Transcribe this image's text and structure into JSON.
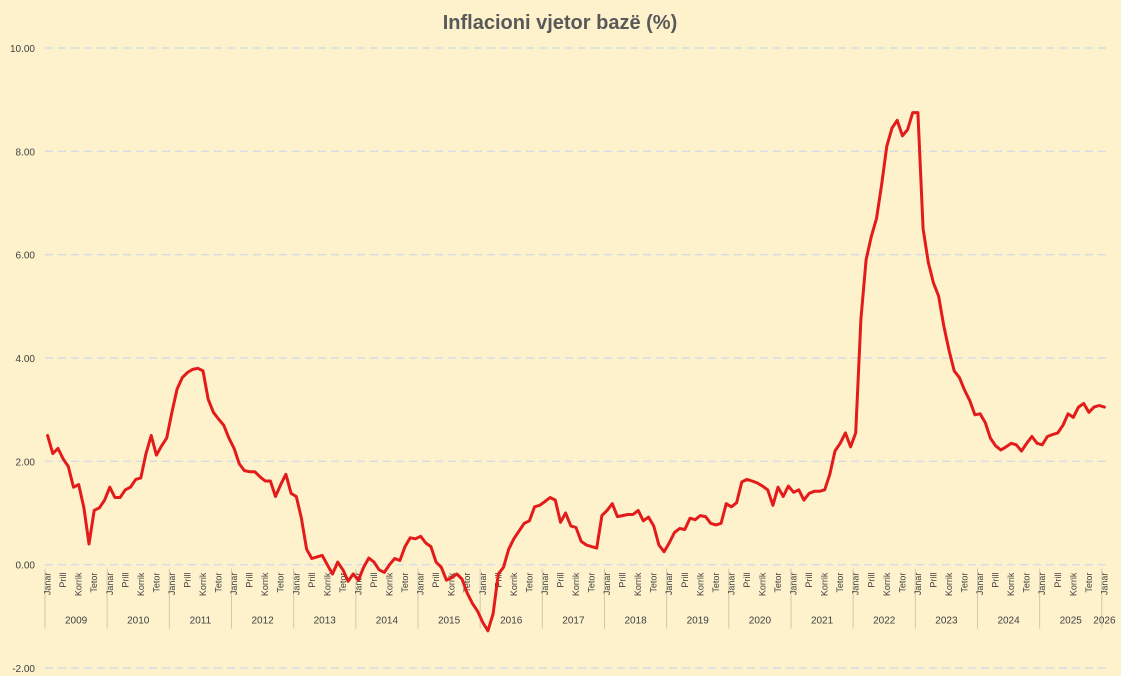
{
  "chart_data": {
    "type": "line",
    "title": "Inflacioni vjetor bazë (%)",
    "xlabel": "",
    "ylabel": "",
    "ylim": [
      -2,
      10
    ],
    "yticks": [
      "-2.00",
      "0.00",
      "2.00",
      "4.00",
      "6.00",
      "8.00",
      "10.00"
    ],
    "grid": true,
    "legend": "none",
    "month_tick_labels": [
      "Janar",
      "Prill",
      "Korrik",
      "Tetor"
    ],
    "final_month_tick_label": "Janar",
    "years": [
      "2009",
      "2010",
      "2011",
      "2012",
      "2013",
      "2014",
      "2015",
      "2016",
      "2017",
      "2018",
      "2019",
      "2020",
      "2021",
      "2022",
      "2023",
      "2024",
      "2025",
      "2026"
    ],
    "x_start": "2009-01",
    "x_end": "2026-01",
    "frequency": "monthly",
    "colors": {
      "line": "#e31b1b",
      "background": "#fef2cc",
      "grid": "#d6dce5",
      "title": "#595959"
    },
    "series": [
      {
        "values": [
          2.5,
          2.15,
          2.25,
          2.05,
          1.9,
          1.5,
          1.55,
          1.1,
          0.4,
          1.05,
          1.1,
          1.25,
          1.5,
          1.3,
          1.3,
          1.45,
          1.5,
          1.65,
          1.68,
          2.15,
          2.5,
          2.12,
          2.3,
          2.45,
          2.95,
          3.4,
          3.62,
          3.72,
          3.78,
          3.8,
          3.75,
          3.2,
          2.95,
          2.82,
          2.7,
          2.45,
          2.25,
          1.95,
          1.82,
          1.8,
          1.8,
          1.7,
          1.62,
          1.62,
          1.32,
          1.55,
          1.75,
          1.38,
          1.32,
          0.9,
          0.3,
          0.12,
          0.15,
          0.18,
          0.0,
          -0.18,
          0.05,
          -0.1,
          -0.32,
          -0.18,
          -0.3,
          -0.05,
          0.13,
          0.05,
          -0.1,
          -0.15,
          0.0,
          0.12,
          0.08,
          0.35,
          0.52,
          0.5,
          0.55,
          0.42,
          0.35,
          0.05,
          -0.05,
          -0.3,
          -0.25,
          -0.18,
          -0.28,
          -0.55,
          -0.75,
          -0.9,
          -1.12,
          -1.28,
          -0.95,
          -0.18,
          -0.05,
          0.3,
          0.5,
          0.65,
          0.8,
          0.85,
          1.12,
          1.15,
          1.22,
          1.3,
          1.25,
          0.82,
          1.0,
          0.75,
          0.72,
          0.45,
          0.38,
          0.35,
          0.32,
          0.95,
          1.05,
          1.18,
          0.93,
          0.95,
          0.97,
          0.97,
          1.05,
          0.85,
          0.92,
          0.75,
          0.38,
          0.25,
          0.42,
          0.62,
          0.7,
          0.68,
          0.9,
          0.87,
          0.95,
          0.93,
          0.8,
          0.77,
          0.8,
          1.18,
          1.12,
          1.2,
          1.6,
          1.65,
          1.62,
          1.58,
          1.52,
          1.45,
          1.15,
          1.5,
          1.32,
          1.52,
          1.4,
          1.45,
          1.25,
          1.38,
          1.42,
          1.42,
          1.45,
          1.75,
          2.2,
          2.35,
          2.55,
          2.28,
          2.55,
          4.75,
          5.9,
          6.35,
          6.7,
          7.35,
          8.1,
          8.45,
          8.6,
          8.3,
          8.42,
          8.75,
          8.75,
          6.5,
          5.85,
          5.45,
          5.2,
          4.62,
          4.15,
          3.75,
          3.62,
          3.38,
          3.18,
          2.9,
          2.92,
          2.75,
          2.45,
          2.3,
          2.22,
          2.28,
          2.35,
          2.32,
          2.2,
          2.35,
          2.48,
          2.35,
          2.32,
          2.48,
          2.52,
          2.55,
          2.7,
          2.92,
          2.85,
          3.05,
          3.12,
          2.95,
          3.05,
          3.08,
          3.05
        ]
      }
    ]
  }
}
